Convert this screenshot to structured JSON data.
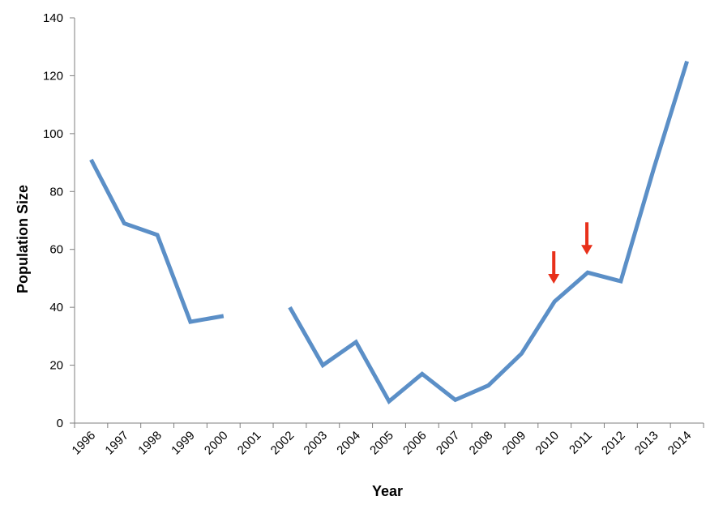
{
  "chart_data": {
    "type": "line",
    "title": "",
    "xlabel": "Year",
    "ylabel": "Population Size",
    "categories": [
      "1996",
      "1997",
      "1998",
      "1999",
      "2000",
      "2001",
      "2002",
      "2003",
      "2004",
      "2005",
      "2006",
      "2007",
      "2008",
      "2009",
      "2010",
      "2011",
      "2012",
      "2013",
      "2014"
    ],
    "series": [
      {
        "values": [
          91,
          69,
          65,
          35,
          37,
          null,
          40,
          20,
          28,
          7.5,
          17,
          8,
          13,
          24,
          42,
          52,
          49,
          88,
          125
        ],
        "color": "#5b8fc7"
      }
    ],
    "ylim": [
      0,
      140
    ],
    "yticks": [
      0,
      20,
      40,
      60,
      80,
      100,
      120,
      140
    ],
    "grid": false,
    "legend": "none",
    "annotations": [
      {
        "type": "arrow-down",
        "category": "2010",
        "color": "#e8301a"
      },
      {
        "type": "arrow-down",
        "category": "2011",
        "color": "#e8301a"
      }
    ]
  }
}
